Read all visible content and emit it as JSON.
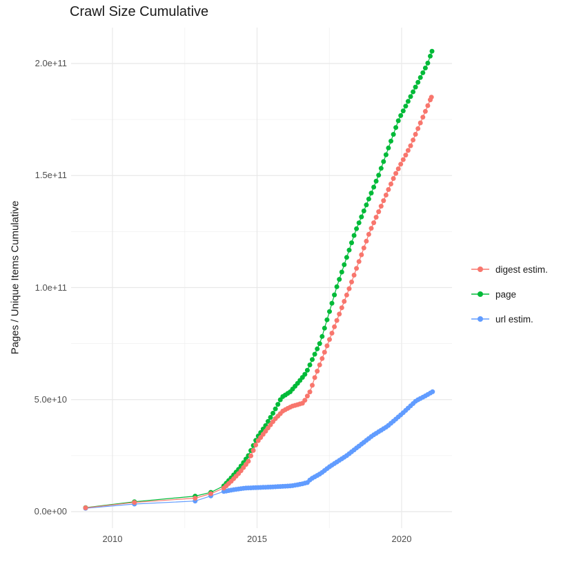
{
  "chart_data": {
    "type": "scatter",
    "subtype": "line+point",
    "title": "Crawl Size Cumulative",
    "xlabel": "",
    "ylabel": "Pages / Unique Items Cumulative",
    "grid": true,
    "background": "#ffffff",
    "gridline_color": "#e8e8e8",
    "xlim": [
      2008.57,
      2021.74
    ],
    "ylim": [
      -7400000000.0,
      216000000000.0
    ],
    "x_ticks": [
      {
        "label": "2010",
        "year": 2010
      },
      {
        "label": "2015",
        "year": 2015
      },
      {
        "label": "2020",
        "year": 2020
      }
    ],
    "x_minor_ticks": [
      2012.5,
      2017.5
    ],
    "y_ticks": [
      {
        "label": "0.0e+00",
        "value": 0
      },
      {
        "label": "5.0e+10",
        "value": 50000000000.0
      },
      {
        "label": "1.0e+11",
        "value": 100000000000.0
      },
      {
        "label": "1.5e+11",
        "value": 150000000000.0
      },
      {
        "label": "2.0e+11",
        "value": 200000000000.0
      }
    ],
    "y_minor_ticks": [
      25000000000.0,
      75000000000.0,
      125000000000.0,
      175000000000.0
    ],
    "legend": {
      "position": "right",
      "items": [
        {
          "label": "digest estim.",
          "color": "#F8766D"
        },
        {
          "label": "page",
          "color": "#00BA38"
        },
        {
          "label": "url estim.",
          "color": "#619CFF"
        }
      ]
    },
    "dense_from": 2013.85,
    "dense_step": 0.085,
    "series": [
      {
        "name": "url estim.",
        "color": "#619CFF",
        "points": [
          [
            2009.07,
            1500000000.0
          ],
          [
            2010.76,
            3400000000.0
          ],
          [
            2012.86,
            4700000000.0
          ],
          [
            2013.4,
            7000000000.0
          ],
          [
            2013.85,
            9000000000.0
          ],
          [
            2014.2,
            9800000000.0
          ],
          [
            2014.6,
            10500000000.0
          ],
          [
            2015.5,
            11000000000.0
          ],
          [
            2016.2,
            11500000000.0
          ],
          [
            2016.6,
            12500000000.0
          ],
          [
            2016.75,
            13000000000.0
          ],
          [
            2016.85,
            14500000000.0
          ],
          [
            2017.2,
            17000000000.0
          ],
          [
            2017.5,
            20000000000.0
          ],
          [
            2018.1,
            25000000000.0
          ],
          [
            2018.6,
            30000000000.0
          ],
          [
            2019.0,
            34000000000.0
          ],
          [
            2019.5,
            38000000000.0
          ],
          [
            2020.0,
            43500000000.0
          ],
          [
            2020.5,
            49500000000.0
          ],
          [
            2020.8,
            51500000000.0
          ],
          [
            2021.07,
            53500000000.0
          ]
        ]
      },
      {
        "name": "page",
        "color": "#00BA38",
        "points": [
          [
            2009.07,
            1800000000.0
          ],
          [
            2010.76,
            4400000000.0
          ],
          [
            2012.86,
            6900000000.0
          ],
          [
            2013.4,
            8600000000.0
          ],
          [
            2013.85,
            11500000000.0
          ],
          [
            2014.1,
            15000000000.0
          ],
          [
            2014.4,
            19500000000.0
          ],
          [
            2014.7,
            25000000000.0
          ],
          [
            2015.0,
            33000000000.0
          ],
          [
            2015.3,
            38500000000.0
          ],
          [
            2015.6,
            45000000000.0
          ],
          [
            2015.85,
            51000000000.0
          ],
          [
            2016.15,
            53500000000.0
          ],
          [
            2016.45,
            58000000000.0
          ],
          [
            2016.7,
            62000000000.0
          ],
          [
            2017.2,
            76000000000.0
          ],
          [
            2017.75,
            100000000000.0
          ],
          [
            2018.4,
            125000000000.0
          ],
          [
            2019.2,
            150000000000.0
          ],
          [
            2019.9,
            175000000000.0
          ],
          [
            2020.5,
            190000000000.0
          ],
          [
            2020.9,
            200000000000.0
          ],
          [
            2021.05,
            205500000000.0
          ]
        ]
      },
      {
        "name": "digest estim.",
        "color": "#F8766D",
        "points": [
          [
            2009.07,
            1700000000.0
          ],
          [
            2010.76,
            4100000000.0
          ],
          [
            2012.86,
            6000000000.0
          ],
          [
            2013.4,
            8000000000.0
          ],
          [
            2013.85,
            10500000000.0
          ],
          [
            2014.1,
            13500000000.0
          ],
          [
            2014.4,
            17500000000.0
          ],
          [
            2014.7,
            22500000000.0
          ],
          [
            2015.0,
            31000000000.0
          ],
          [
            2015.3,
            36000000000.0
          ],
          [
            2015.6,
            41000000000.0
          ],
          [
            2015.9,
            45000000000.0
          ],
          [
            2016.2,
            47000000000.0
          ],
          [
            2016.6,
            48500000000.0
          ],
          [
            2016.85,
            54000000000.0
          ],
          [
            2017.0,
            60000000000.0
          ],
          [
            2017.45,
            75000000000.0
          ],
          [
            2018.2,
            100000000000.0
          ],
          [
            2018.9,
            125000000000.0
          ],
          [
            2019.76,
            150000000000.0
          ],
          [
            2020.3,
            163000000000.0
          ],
          [
            2020.7,
            175000000000.0
          ],
          [
            2021.03,
            185000000000.0
          ]
        ]
      }
    ]
  }
}
